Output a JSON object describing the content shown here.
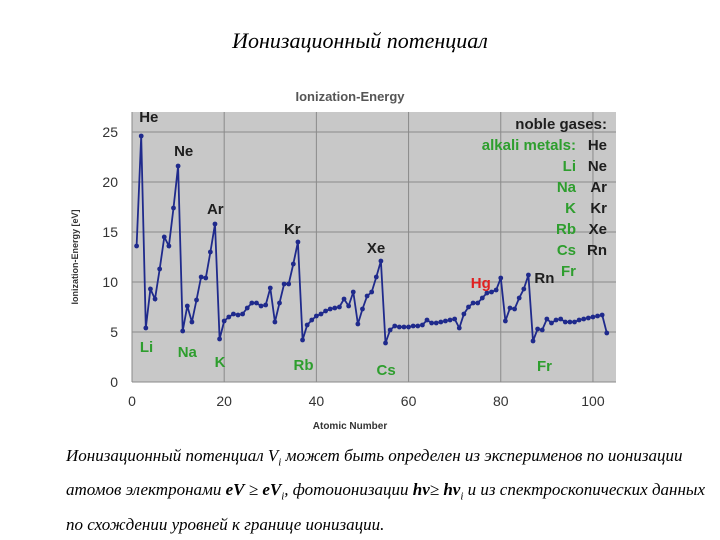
{
  "slide": {
    "title": "Ионизационный потенциал",
    "caption": {
      "t1": "Ионизационный потенциал ",
      "V": "V",
      "i": "i",
      "t2": " может быть определен из эксперименов по ионизации атомов электронами ",
      "eV": "eV",
      "ge": " ≥ ",
      "eVi": "eV",
      "i2": "i",
      "t3": ", фотоионизации ",
      "hv": "hν",
      "ge2": "≥ ",
      "hvi": "hν",
      "i3": "i",
      "t4": " и из спектроскопических данных по схождении уровней к границе ионизации."
    }
  },
  "chart_data": {
    "type": "line",
    "title": "Ionization-Energy",
    "xlabel": "Atomic Number",
    "ylabel": "Ionization-Energy [eV]",
    "xlim": [
      0,
      105
    ],
    "ylim": [
      0,
      27
    ],
    "xticks": [
      0,
      20,
      40,
      60,
      80,
      100
    ],
    "yticks": [
      0,
      5,
      10,
      15,
      20,
      25
    ],
    "grid": true,
    "legend_title": "noble gases:",
    "legend_alkali_title": "alkali metals:",
    "legend_noble": [
      "He",
      "Ne",
      "Ar",
      "Kr",
      "Xe",
      "Rn"
    ],
    "legend_alkali": [
      "Li",
      "Na",
      "K",
      "Rb",
      "Cs",
      "Fr"
    ],
    "colors": {
      "plot_bg": "#c8c8c8",
      "line": "#1f2a8c",
      "noble_label": "#1e1e1e",
      "alkali_label": "#2e9e2e",
      "hg_label": "#e02020",
      "title": "#555555"
    },
    "series": [
      {
        "x": [
          1,
          2,
          3,
          4,
          5,
          6,
          7,
          8,
          9,
          10,
          11,
          12,
          13,
          14,
          15,
          16,
          17,
          18,
          19,
          20,
          21,
          22,
          23,
          24,
          25,
          26,
          27,
          28,
          29,
          30,
          31,
          32,
          33,
          34,
          35,
          36,
          37,
          38,
          39,
          40,
          41,
          42,
          43,
          44,
          45,
          46,
          47,
          48,
          49,
          50,
          51,
          52,
          53,
          54,
          55,
          56,
          57,
          58,
          59,
          60,
          61,
          62,
          63,
          64,
          65,
          66,
          67,
          68,
          69,
          70,
          71,
          72,
          73,
          74,
          75,
          76,
          77,
          78,
          79,
          80,
          81,
          82,
          83,
          84,
          85,
          86,
          87,
          88,
          89,
          90,
          91,
          92,
          93,
          94,
          95,
          96,
          97,
          98,
          99,
          100,
          101,
          102,
          103
        ],
        "values": [
          13.6,
          24.6,
          5.4,
          9.3,
          8.3,
          11.3,
          14.5,
          13.6,
          17.4,
          21.6,
          5.1,
          7.6,
          6.0,
          8.2,
          10.5,
          10.4,
          13.0,
          15.8,
          4.3,
          6.1,
          6.5,
          6.8,
          6.7,
          6.8,
          7.4,
          7.9,
          7.9,
          7.6,
          7.7,
          9.4,
          6.0,
          7.9,
          9.8,
          9.8,
          11.8,
          14.0,
          4.2,
          5.7,
          6.2,
          6.6,
          6.8,
          7.1,
          7.3,
          7.4,
          7.5,
          8.3,
          7.6,
          9.0,
          5.8,
          7.3,
          8.6,
          9.0,
          10.5,
          12.1,
          3.9,
          5.2,
          5.6,
          5.5,
          5.5,
          5.5,
          5.6,
          5.6,
          5.7,
          6.2,
          5.9,
          5.9,
          6.0,
          6.1,
          6.2,
          6.3,
          5.4,
          6.8,
          7.5,
          7.9,
          7.9,
          8.4,
          8.9,
          9.0,
          9.2,
          10.4,
          6.1,
          7.4,
          7.3,
          8.4,
          9.3,
          10.7,
          4.1,
          5.3,
          5.2,
          6.3,
          5.9,
          6.2,
          6.3,
          6.0,
          6.0,
          6.0,
          6.2,
          6.3,
          6.4,
          6.5,
          6.6,
          6.7,
          4.9
        ]
      }
    ],
    "annotations": [
      {
        "text": "He",
        "x": 2,
        "y": 24.6
      },
      {
        "text": "Ne",
        "x": 10,
        "y": 21.6
      },
      {
        "text": "Ar",
        "x": 18,
        "y": 15.8
      },
      {
        "text": "Kr",
        "x": 36,
        "y": 14.0
      },
      {
        "text": "Xe",
        "x": 54,
        "y": 12.1
      },
      {
        "text": "Rn",
        "x": 86,
        "y": 10.7
      },
      {
        "text": "Hg",
        "x": 80,
        "y": 10.4
      },
      {
        "text": "Li",
        "x": 3,
        "y": 5.4
      },
      {
        "text": "Na",
        "x": 11,
        "y": 5.1
      },
      {
        "text": "K",
        "x": 19,
        "y": 4.3
      },
      {
        "text": "Rb",
        "x": 37,
        "y": 4.2
      },
      {
        "text": "Cs",
        "x": 55,
        "y": 3.9
      },
      {
        "text": "Fr",
        "x": 87,
        "y": 4.1
      }
    ]
  }
}
